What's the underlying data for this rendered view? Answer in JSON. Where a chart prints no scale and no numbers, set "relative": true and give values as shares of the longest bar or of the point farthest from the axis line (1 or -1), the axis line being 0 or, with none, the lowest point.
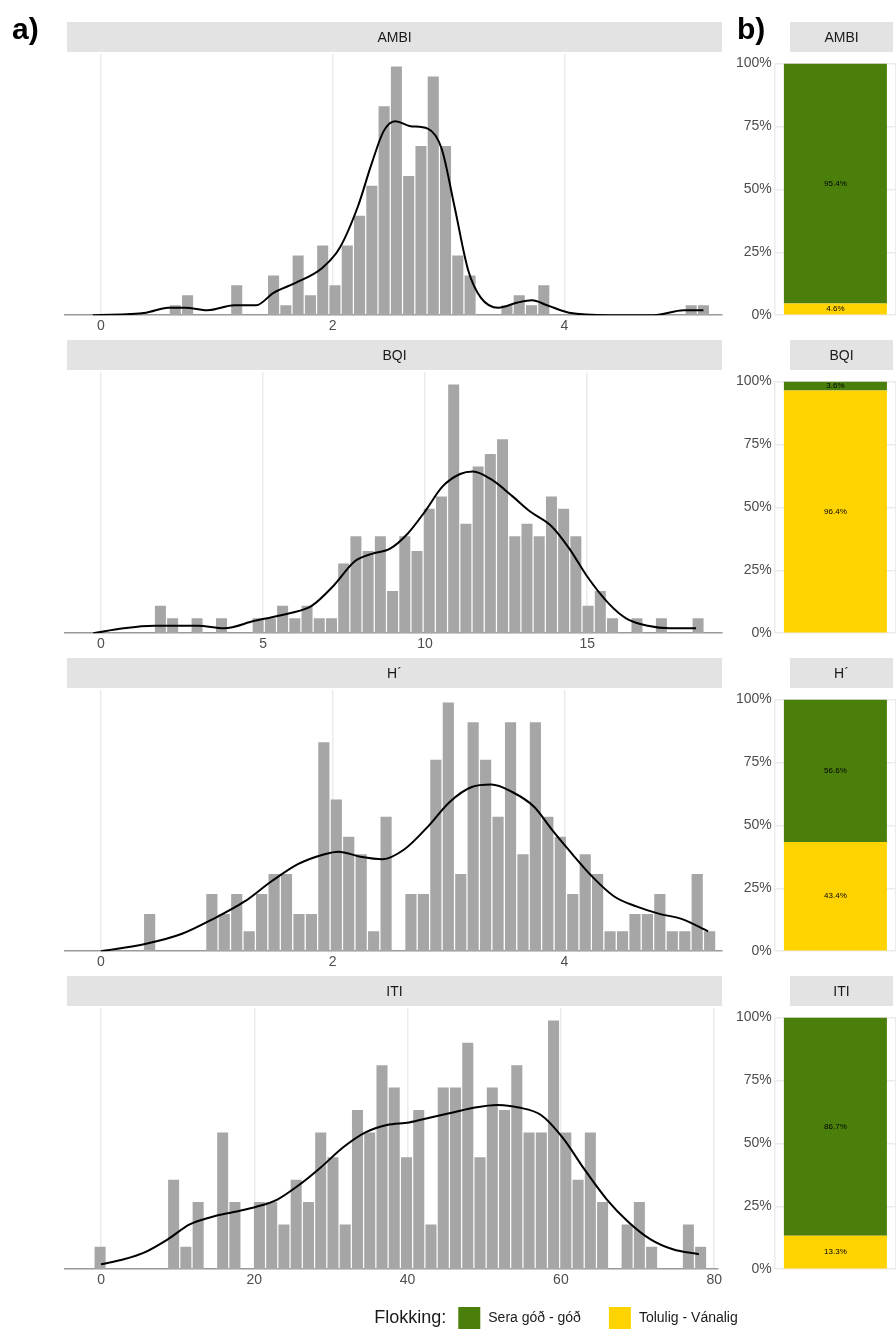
{
  "chart_data": [
    {
      "type": "histogram",
      "title": "AMBI",
      "annotations": [
        "a)"
      ],
      "relative": true,
      "grid": true,
      "xlim": [
        -0.31,
        5.36
      ],
      "xticks": [
        0,
        2,
        4
      ],
      "bins": [
        -0.047,
        0.059,
        0.165,
        0.271,
        0.377,
        0.483,
        0.589,
        0.695,
        0.801,
        0.907,
        1.013,
        1.119,
        1.225,
        1.331,
        1.437,
        1.543,
        1.649,
        1.755,
        1.861,
        1.967,
        2.073,
        2.179,
        2.285,
        2.391,
        2.497,
        2.603,
        2.709,
        2.815,
        2.921,
        3.027,
        3.133,
        3.239,
        3.345,
        3.451,
        3.557,
        3.663,
        3.769,
        3.875,
        3.981,
        4.087,
        4.193,
        4.299,
        4.405,
        4.511,
        4.617,
        4.723,
        4.829,
        4.935,
        5.041,
        5.147,
        5.253
      ],
      "series": [
        {
          "type": "histogram",
          "color": "#a6a6a6",
          "values": [
            0,
            0,
            0,
            0,
            0,
            0,
            0.04,
            0.08,
            0,
            0,
            0,
            0.12,
            0,
            0,
            0.16,
            0.04,
            0.24,
            0.08,
            0.28,
            0.12,
            0.28,
            0.4,
            0.52,
            0.84,
            1,
            0.56,
            0.68,
            0.96,
            0.68,
            0.24,
            0.16,
            0,
            0,
            0.04,
            0.08,
            0.04,
            0.12,
            0,
            0,
            0,
            0,
            0,
            0,
            0,
            0,
            0,
            0,
            0,
            0.04,
            0.04
          ]
        },
        {
          "type": "line",
          "color": "#000000",
          "x": [
            -0.07,
            0.39,
            0.58,
            0.73,
            0.92,
            1.15,
            1.34,
            1.49,
            1.68,
            1.91,
            2.06,
            2.22,
            2.33,
            2.44,
            2.54,
            2.67,
            2.82,
            2.94,
            3.05,
            3.17,
            3.28,
            3.43,
            3.59,
            3.72,
            3.85,
            4.04,
            4.39,
            4.77,
            5.03,
            5.2
          ],
          "values": [
            0,
            0.01,
            0.03,
            0.03,
            0.02,
            0.04,
            0.04,
            0.09,
            0.13,
            0.19,
            0.27,
            0.44,
            0.6,
            0.74,
            0.78,
            0.76,
            0.75,
            0.67,
            0.44,
            0.18,
            0.07,
            0.03,
            0.05,
            0.06,
            0.04,
            0.01,
            0,
            0,
            0.02,
            0.02
          ]
        }
      ]
    },
    {
      "type": "bar",
      "title": "AMBI",
      "annotations": [
        "b)"
      ],
      "categories": [
        null
      ],
      "stacked": true,
      "grid": true,
      "ylim": [
        0,
        100
      ],
      "yticks": [
        {
          "value": 0,
          "label": "0%"
        },
        {
          "value": 25,
          "label": "25%"
        },
        {
          "value": 50,
          "label": "50%"
        },
        {
          "value": 75,
          "label": "75%"
        },
        {
          "value": 100,
          "label": "100%"
        }
      ],
      "series": [
        {
          "color": "#ffd300",
          "values": [
            4.6
          ],
          "value_labels": [
            "4.6%"
          ]
        },
        {
          "color": "#4b7f0c",
          "values": [
            95.4
          ],
          "value_labels": [
            "95.4%"
          ]
        }
      ]
    },
    {
      "type": "histogram",
      "title": "BQI",
      "relative": true,
      "grid": true,
      "xlim": [
        -1.11,
        19.16
      ],
      "xticks": [
        0,
        5,
        10,
        15
      ],
      "bins": [
        -0.24,
        0.137,
        0.514,
        0.891,
        1.268,
        1.645,
        2.022,
        2.399,
        2.776,
        3.153,
        3.53,
        3.907,
        4.284,
        4.661,
        5.038,
        5.415,
        5.792,
        6.169,
        6.546,
        6.923,
        7.3,
        7.677,
        8.054,
        8.431,
        8.808,
        9.185,
        9.562,
        9.939,
        10.316,
        10.693,
        11.07,
        11.447,
        11.824,
        12.201,
        12.578,
        12.955,
        13.332,
        13.709,
        14.086,
        14.463,
        14.84,
        15.217,
        15.594,
        15.971,
        16.348,
        16.725,
        17.102,
        17.479,
        17.856,
        18.233,
        18.61
      ],
      "series": [
        {
          "type": "histogram",
          "color": "#a6a6a6",
          "values": [
            0,
            0,
            0,
            0,
            0,
            0.11,
            0.06,
            0,
            0.06,
            0,
            0.06,
            0,
            0,
            0.06,
            0.06,
            0.11,
            0.06,
            0.11,
            0.06,
            0.06,
            0.28,
            0.39,
            0.33,
            0.39,
            0.17,
            0.39,
            0.33,
            0.5,
            0.55,
            1,
            0.44,
            0.67,
            0.72,
            0.78,
            0.39,
            0.44,
            0.39,
            0.55,
            0.5,
            0.39,
            0.11,
            0.17,
            0.06,
            0,
            0.06,
            0,
            0.06,
            0,
            0,
            0.06
          ]
        },
        {
          "type": "line",
          "color": "#000000",
          "x": [
            -0.24,
            0.7,
            1.65,
            2.18,
            2.99,
            3.8,
            4.74,
            5.82,
            6.5,
            7.17,
            7.84,
            8.38,
            8.92,
            9.46,
            10,
            10.54,
            11.08,
            11.48,
            12.02,
            12.7,
            13.23,
            13.9,
            14.45,
            14.99,
            15.66,
            16.2,
            16.87,
            17.55,
            18.36
          ],
          "values": [
            0,
            0.02,
            0.03,
            0.03,
            0.03,
            0.02,
            0.05,
            0.08,
            0.11,
            0.19,
            0.29,
            0.32,
            0.34,
            0.4,
            0.49,
            0.59,
            0.64,
            0.65,
            0.62,
            0.55,
            0.49,
            0.43,
            0.34,
            0.23,
            0.12,
            0.06,
            0.03,
            0.02,
            0.02
          ]
        }
      ]
    },
    {
      "type": "bar",
      "title": "BQI",
      "categories": [
        null
      ],
      "stacked": true,
      "grid": true,
      "ylim": [
        0,
        100
      ],
      "yticks": [
        {
          "value": 0,
          "label": "0%"
        },
        {
          "value": 25,
          "label": "25%"
        },
        {
          "value": 50,
          "label": "50%"
        },
        {
          "value": 75,
          "label": "75%"
        },
        {
          "value": 100,
          "label": "100%"
        }
      ],
      "series": [
        {
          "color": "#ffd300",
          "values": [
            96.4
          ],
          "value_labels": [
            "96.4%"
          ]
        },
        {
          "color": "#4b7f0c",
          "values": [
            3.6
          ],
          "value_labels": [
            "3.6%"
          ]
        }
      ]
    },
    {
      "type": "histogram",
      "title": "H´",
      "relative": true,
      "grid": true,
      "xlim": [
        -0.31,
        5.36
      ],
      "xticks": [
        0,
        2,
        4
      ],
      "bins": [
        -0.063,
        0.044,
        0.152,
        0.259,
        0.367,
        0.474,
        0.581,
        0.689,
        0.796,
        0.904,
        1.011,
        1.118,
        1.226,
        1.333,
        1.441,
        1.548,
        1.655,
        1.763,
        1.87,
        1.978,
        2.085,
        2.192,
        2.3,
        2.407,
        2.515,
        2.622,
        2.729,
        2.837,
        2.944,
        3.052,
        3.159,
        3.266,
        3.374,
        3.481,
        3.589,
        3.696,
        3.803,
        3.911,
        4.018,
        4.126,
        4.233,
        4.34,
        4.448,
        4.555,
        4.663,
        4.77,
        4.877,
        4.985,
        5.092,
        5.2,
        5.307
      ],
      "series": [
        {
          "type": "histogram",
          "color": "#a6a6a6",
          "values": [
            0,
            0,
            0,
            0,
            0.15,
            0,
            0,
            0,
            0,
            0.23,
            0.15,
            0.23,
            0.08,
            0.23,
            0.31,
            0.31,
            0.15,
            0.15,
            0.84,
            0.61,
            0.46,
            0.39,
            0.08,
            0.54,
            0,
            0.23,
            0.23,
            0.77,
            1,
            0.31,
            0.92,
            0.77,
            0.54,
            0.92,
            0.39,
            0.92,
            0.54,
            0.46,
            0.23,
            0.39,
            0.31,
            0.08,
            0.08,
            0.15,
            0.15,
            0.23,
            0.08,
            0.08,
            0.31,
            0.08
          ]
        },
        {
          "type": "line",
          "color": "#000000",
          "x": [
            0,
            0.39,
            0.7,
            0.97,
            1.24,
            1.47,
            1.7,
            1.93,
            2.05,
            2.24,
            2.43,
            2.62,
            2.82,
            3.01,
            3.2,
            3.37,
            3.55,
            3.74,
            3.89,
            4.05,
            4.24,
            4.43,
            4.62,
            4.82,
            5.01,
            5.24
          ],
          "values": [
            0,
            0.03,
            0.07,
            0.13,
            0.2,
            0.28,
            0.35,
            0.39,
            0.4,
            0.38,
            0.37,
            0.41,
            0.5,
            0.6,
            0.66,
            0.67,
            0.64,
            0.58,
            0.49,
            0.4,
            0.3,
            0.22,
            0.18,
            0.15,
            0.13,
            0.08
          ]
        }
      ]
    },
    {
      "type": "bar",
      "title": "H´",
      "categories": [
        null
      ],
      "stacked": true,
      "grid": true,
      "ylim": [
        0,
        100
      ],
      "yticks": [
        {
          "value": 0,
          "label": "0%"
        },
        {
          "value": 25,
          "label": "25%"
        },
        {
          "value": 50,
          "label": "50%"
        },
        {
          "value": 75,
          "label": "75%"
        },
        {
          "value": 100,
          "label": "100%"
        }
      ],
      "series": [
        {
          "color": "#ffd300",
          "values": [
            43.4
          ],
          "value_labels": [
            "43.4%"
          ]
        },
        {
          "color": "#4b7f0c",
          "values": [
            56.6
          ],
          "value_labels": [
            "56.6%"
          ]
        }
      ]
    },
    {
      "type": "histogram",
      "title": "ITI",
      "relative": true,
      "grid": true,
      "xlim": [
        -4.7,
        80.4
      ],
      "xticks": [
        0,
        20,
        40,
        60,
        80
      ],
      "bins": [
        -0.92,
        0.679,
        2.278,
        3.877,
        5.476,
        7.075,
        8.674,
        10.273,
        11.872,
        13.471,
        15.07,
        16.669,
        18.268,
        19.867,
        21.466,
        23.065,
        24.664,
        26.263,
        27.862,
        29.461,
        31.06,
        32.659,
        34.258,
        35.857,
        37.456,
        39.055,
        40.654,
        42.253,
        43.852,
        45.451,
        47.05,
        48.649,
        50.248,
        51.847,
        53.446,
        55.045,
        56.644,
        58.243,
        59.842,
        61.441,
        63.04,
        64.639,
        66.238,
        67.837,
        69.436,
        71.035,
        72.634,
        74.233,
        75.832,
        77.431,
        79.03
      ],
      "series": [
        {
          "type": "histogram",
          "color": "#a6a6a6",
          "values": [
            0.09,
            0,
            0,
            0,
            0,
            0,
            0.36,
            0.09,
            0.27,
            0,
            0.55,
            0.27,
            0,
            0.27,
            0.27,
            0.18,
            0.36,
            0.27,
            0.55,
            0.45,
            0.18,
            0.64,
            0.55,
            0.82,
            0.73,
            0.45,
            0.64,
            0.18,
            0.73,
            0.73,
            0.91,
            0.45,
            0.73,
            0.64,
            0.82,
            0.55,
            0.55,
            1,
            0.55,
            0.36,
            0.55,
            0.27,
            0,
            0.18,
            0.27,
            0.09,
            0,
            0,
            0.18,
            0.09
          ]
        },
        {
          "type": "line",
          "color": "#000000",
          "x": [
            0,
            2.98,
            5.84,
            8.71,
            11.57,
            14.43,
            17.3,
            20.16,
            23,
            25.9,
            28.7,
            31.6,
            34.5,
            37.3,
            40.2,
            43,
            45.9,
            48.8,
            51.7,
            54.5,
            57.4,
            60.2,
            63.1,
            66,
            68.8,
            71.7,
            74.6,
            78
          ],
          "values": [
            0.02,
            0.04,
            0.07,
            0.12,
            0.18,
            0.21,
            0.23,
            0.25,
            0.28,
            0.34,
            0.41,
            0.49,
            0.55,
            0.58,
            0.59,
            0.61,
            0.63,
            0.65,
            0.66,
            0.65,
            0.62,
            0.53,
            0.4,
            0.28,
            0.19,
            0.12,
            0.08,
            0.06
          ]
        }
      ]
    },
    {
      "type": "bar",
      "title": "ITI",
      "categories": [
        null
      ],
      "stacked": true,
      "grid": true,
      "ylim": [
        0,
        100
      ],
      "yticks": [
        {
          "value": 0,
          "label": "0%"
        },
        {
          "value": 25,
          "label": "25%"
        },
        {
          "value": 50,
          "label": "50%"
        },
        {
          "value": 75,
          "label": "75%"
        },
        {
          "value": 100,
          "label": "100%"
        }
      ],
      "legend": "bottom",
      "legend_title": "Flokking:",
      "series": [
        {
          "name": "Tolulig - Vánalig",
          "color": "#ffd300",
          "values": [
            13.3
          ],
          "value_labels": [
            "13.3%"
          ]
        },
        {
          "name": "Sera góð - góð",
          "color": "#4b7f0c",
          "values": [
            86.7
          ],
          "value_labels": [
            "86.7%"
          ]
        }
      ]
    }
  ]
}
